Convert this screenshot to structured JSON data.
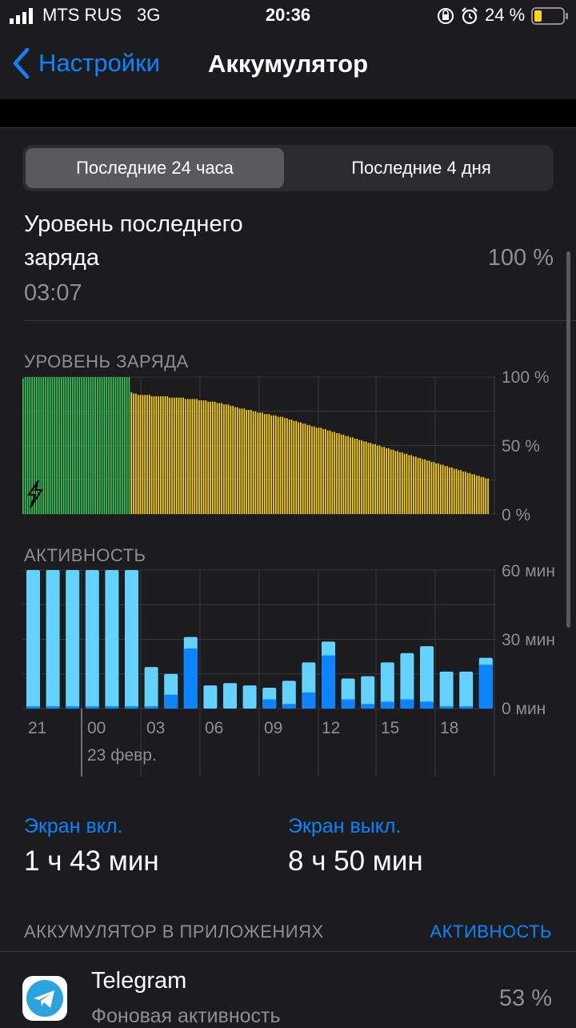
{
  "status": {
    "carrier": "MTS RUS",
    "network": "3G",
    "time": "20:36",
    "battery": "24 %"
  },
  "nav": {
    "back_label": "Настройки",
    "title": "Аккумулятор"
  },
  "segments": {
    "tab1": "Последние 24 часа",
    "tab2": "Последние 4 дня",
    "selected": 0
  },
  "last_charge": {
    "label_line1": "Уровень последнего",
    "label_line2": "заряда",
    "time": "03:07",
    "value": "100 %"
  },
  "battery_chart": {
    "title": "УРОВЕНЬ ЗАРЯДА",
    "yticks": [
      "100 %",
      "50 %",
      "0 %"
    ]
  },
  "activity_chart": {
    "title": "АКТИВНОСТЬ",
    "yticks": [
      "60 мин",
      "30 мин",
      "0 мин"
    ],
    "xticks": [
      "21",
      "00",
      "03",
      "06",
      "09",
      "12",
      "15",
      "18"
    ],
    "date_label": "23 февр."
  },
  "chart_data": [
    {
      "type": "bar",
      "title": "УРОВЕНЬ ЗАРЯДА",
      "ylabel": "",
      "ylim": [
        0,
        100
      ],
      "series": [
        {
          "color": "#34c759",
          "values": [
            99,
            100,
            100,
            100,
            100,
            100,
            100,
            100,
            100,
            100,
            100,
            100,
            100,
            100,
            100,
            100,
            100,
            100,
            100,
            100,
            100,
            100,
            100,
            100,
            100,
            100,
            100,
            100,
            100,
            100,
            100,
            100,
            100,
            100,
            100,
            100,
            100,
            100,
            100,
            100,
            100,
            100,
            100,
            100,
            100,
            100,
            100,
            100
          ]
        },
        {
          "color": "#ffd60a",
          "values": [
            89,
            88,
            88,
            87,
            87,
            87,
            87,
            87,
            87,
            86,
            86,
            86,
            86,
            86,
            86,
            86,
            86,
            85,
            85,
            85,
            85,
            85,
            85,
            85,
            84,
            84,
            84,
            84,
            84,
            84,
            83,
            83,
            83,
            83,
            82,
            82,
            82,
            82,
            81,
            81,
            81,
            80,
            80,
            80,
            79,
            79,
            78,
            78,
            77,
            77,
            77,
            76,
            76,
            76,
            75,
            75,
            74,
            74,
            74,
            73,
            73,
            73,
            72,
            72,
            72,
            71,
            71,
            71,
            70,
            70,
            69,
            69,
            68,
            68,
            67,
            67,
            66,
            66,
            65,
            65,
            64,
            64,
            63,
            63,
            63,
            62,
            62,
            61,
            61,
            60,
            60,
            59,
            59,
            58,
            58,
            57,
            57,
            56,
            56,
            55,
            55,
            54,
            54,
            53,
            53,
            52,
            52,
            51,
            51,
            50,
            50,
            49,
            49,
            48,
            48,
            47,
            47,
            46,
            46,
            45,
            45,
            44,
            44,
            43,
            43,
            42,
            42,
            41,
            41,
            40,
            40,
            39,
            39,
            38,
            38,
            37,
            37,
            36,
            36,
            35,
            35,
            34,
            34,
            33,
            33,
            32,
            32,
            31,
            31,
            30,
            30,
            29,
            29,
            28,
            28,
            27,
            27,
            26,
            26
          ]
        }
      ]
    },
    {
      "type": "bar",
      "title": "АКТИВНОСТЬ",
      "xticks": [
        "21",
        "00",
        "03",
        "06",
        "09",
        "12",
        "15",
        "18"
      ],
      "ylim": [
        0,
        60
      ],
      "series": [
        {
          "name": "",
          "color": "#64d2ff",
          "values": [
            60,
            60,
            60,
            60,
            60,
            60,
            18,
            15,
            31,
            10,
            11,
            10,
            9,
            12,
            20,
            29,
            13,
            14,
            20,
            24,
            27,
            16,
            16,
            22
          ]
        },
        {
          "name": "",
          "color": "#0a84ff",
          "values": [
            1,
            1,
            1,
            1,
            1,
            1,
            1,
            6,
            26,
            0,
            0,
            0,
            4,
            2,
            7,
            23,
            4,
            2,
            3,
            4,
            3,
            1,
            1,
            19
          ]
        }
      ]
    }
  ],
  "screen": {
    "on_label": "Экран вкл.",
    "on_value": "1 ч 43 мин",
    "off_label": "Экран выкл.",
    "off_value": "8 ч 50 мин"
  },
  "apps_section": {
    "title": "АККУМУЛЯТОР В ПРИЛОЖЕНИЯХ",
    "action": "АКТИВНОСТЬ"
  },
  "apps": [
    {
      "name": "Telegram",
      "detail": "Фоновая активность",
      "percent": "53 %"
    }
  ],
  "colors": {
    "accent": "#0a84ff",
    "green": "#34c759",
    "yellow": "#ffd60a",
    "light_blue": "#64d2ff"
  }
}
